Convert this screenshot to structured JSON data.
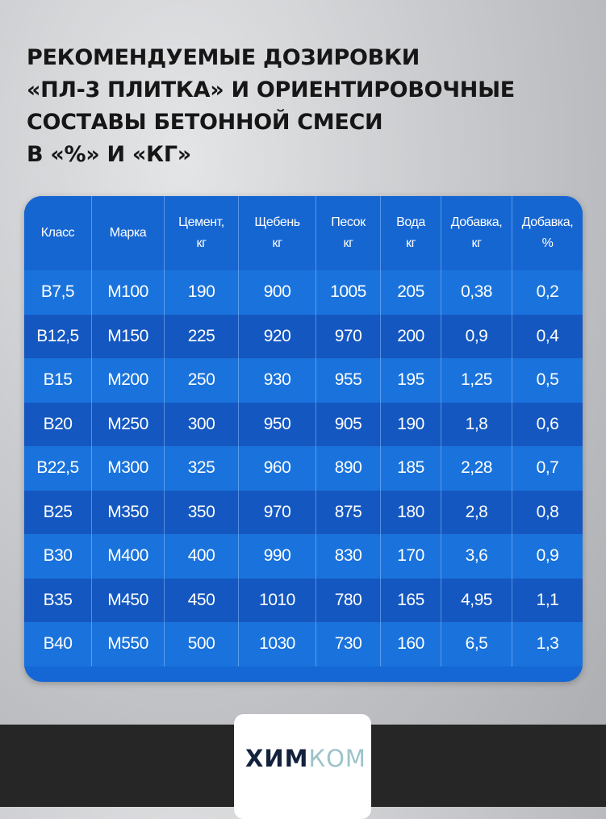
{
  "title": {
    "lines": [
      "РЕКОМЕНДУЕМЫЕ ДОЗИРОВКИ",
      "«ПЛ-3 ПЛИТКА» И ОРИЕНТИРОВОЧНЫЕ",
      "СОСТАВЫ БЕТОННОЙ СМЕСИ",
      "В «%» И «КГ»"
    ]
  },
  "table": {
    "headers": [
      "Класс",
      "Марка",
      "Цемент,\nкг",
      "Щебень\nкг",
      "Песок\nкг",
      "Вода\nкг",
      "Добавка,\nкг",
      "Добавка,\n%"
    ],
    "rows": [
      [
        "В7,5",
        "М100",
        "190",
        "900",
        "1005",
        "205",
        "0,38",
        "0,2"
      ],
      [
        "В12,5",
        "М150",
        "225",
        "920",
        "970",
        "200",
        "0,9",
        "0,4"
      ],
      [
        "В15",
        "М200",
        "250",
        "930",
        "955",
        "195",
        "1,25",
        "0,5"
      ],
      [
        "В20",
        "М250",
        "300",
        "950",
        "905",
        "190",
        "1,8",
        "0,6"
      ],
      [
        "В22,5",
        "М300",
        "325",
        "960",
        "890",
        "185",
        "2,28",
        "0,7"
      ],
      [
        "В25",
        "М350",
        "350",
        "970",
        "875",
        "180",
        "2,8",
        "0,8"
      ],
      [
        "В30",
        "М400",
        "400",
        "990",
        "830",
        "170",
        "3,6",
        "0,9"
      ],
      [
        "В35",
        "М450",
        "450",
        "1010",
        "780",
        "165",
        "4,95",
        "1,1"
      ],
      [
        "В40",
        "М550",
        "500",
        "1030",
        "730",
        "160",
        "6,5",
        "1,3"
      ]
    ]
  },
  "logo": {
    "part1": "ХИМ",
    "part2": "КОМ"
  },
  "colors": {
    "table_light": "#1a73dc",
    "table_dark": "#1457c0",
    "logo_dark": "#14213d",
    "logo_light": "#9cc3c8"
  }
}
